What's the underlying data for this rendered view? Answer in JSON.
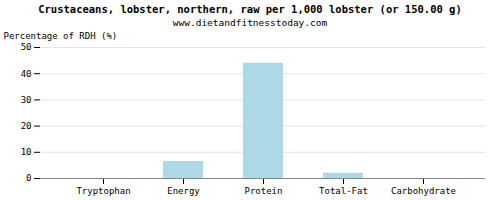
{
  "chart_data": {
    "type": "bar",
    "title": "Crustaceans, lobster, northern, raw per 1,000 lobster (or 150.00 g)",
    "subtitle": "www.dietandfitnesstoday.com",
    "categories": [
      "Tryptophan",
      "Energy",
      "Protein",
      "Total-Fat",
      "Carbohydrate"
    ],
    "values": [
      0,
      6.5,
      44,
      2,
      0
    ],
    "color": "#add8e6",
    "ylabel": "Percentage of RDH (%)",
    "ylim": [
      0,
      50
    ],
    "yticks": [
      0,
      10,
      20,
      30,
      40,
      50
    ],
    "grid": true
  }
}
